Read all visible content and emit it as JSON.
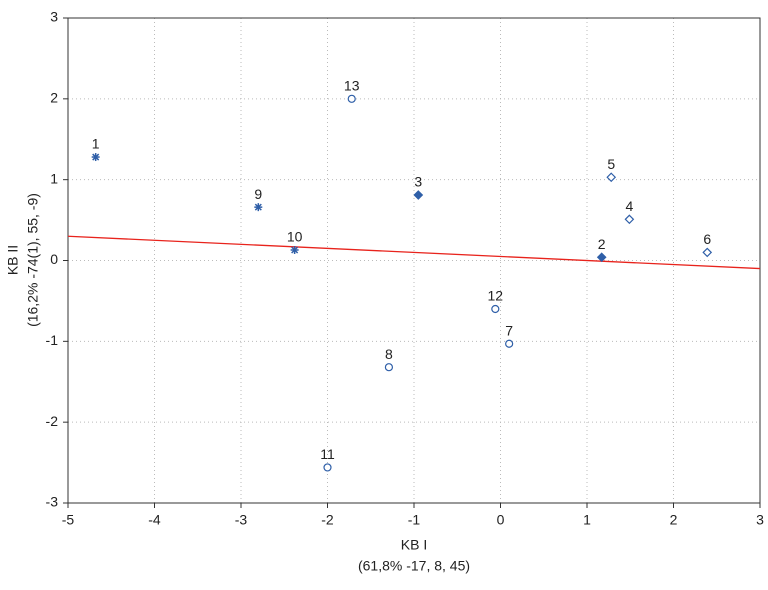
{
  "chart_data": {
    "type": "scatter",
    "xlabel": "KB I",
    "xlabel2": "(61,8% -17, 8, 45)",
    "ylabel": "KB II",
    "ylabel2": "(16,2% -74(1), 55, -9)",
    "xlim": [
      -5,
      3
    ],
    "ylim": [
      -3,
      3
    ],
    "xticks": [
      -5,
      -4,
      -3,
      -2,
      -1,
      0,
      1,
      2,
      3
    ],
    "yticks": [
      -3,
      -2,
      -1,
      0,
      1,
      2,
      3
    ],
    "grid": true,
    "color": "#2f5fa8",
    "labels": [
      "1",
      "13",
      "9",
      "3",
      "10",
      "5",
      "4",
      "2",
      "6",
      "12",
      "7",
      "8",
      "11"
    ],
    "x": [
      -4.68,
      -1.72,
      -2.8,
      -0.95,
      -2.38,
      1.28,
      1.49,
      1.17,
      2.39,
      -0.06,
      0.1,
      -1.29,
      -2.0
    ],
    "y": [
      1.28,
      2.0,
      0.66,
      0.81,
      0.13,
      1.03,
      0.51,
      0.04,
      0.1,
      -0.6,
      -1.03,
      -1.32,
      -2.56
    ],
    "markers": [
      "asterisk",
      "circle",
      "asterisk",
      "diamond-filled",
      "asterisk",
      "diamond",
      "diamond",
      "diamond-filled",
      "diamond",
      "circle",
      "circle",
      "circle",
      "circle"
    ],
    "fit_line": {
      "x": [
        -5,
        3
      ],
      "y": [
        0.3,
        -0.1
      ],
      "color": "#e8231c"
    }
  }
}
